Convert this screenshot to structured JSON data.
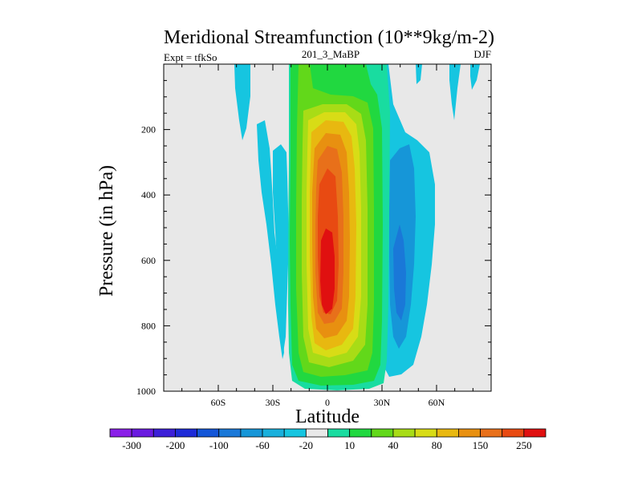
{
  "chart_data": {
    "type": "contour",
    "title": "Meridional Streamfunction (10**9kg/m-2)",
    "subtitle_left": "Expt = tfkSo",
    "subtitle_center": "201_3_MaBP",
    "subtitle_right": "DJF",
    "xlabel": "Latitude",
    "ylabel": "Pressure (in hPa)",
    "xlim": [
      -90,
      90
    ],
    "ylim": [
      0,
      1000
    ],
    "x_ticks": [
      {
        "value": -60,
        "label": "60S"
      },
      {
        "value": -30,
        "label": "30S"
      },
      {
        "value": 0,
        "label": "0"
      },
      {
        "value": 30,
        "label": "30N"
      },
      {
        "value": 60,
        "label": "60N"
      }
    ],
    "y_ticks": [
      {
        "value": 200,
        "label": "200"
      },
      {
        "value": 400,
        "label": "400"
      },
      {
        "value": 600,
        "label": "600"
      },
      {
        "value": 800,
        "label": "800"
      },
      {
        "value": 1000,
        "label": "1000"
      }
    ],
    "colorbar": {
      "colors": [
        "#8a1fe8",
        "#6a1ae0",
        "#3c1fd8",
        "#1e2bd8",
        "#1356d8",
        "#1a78d8",
        "#1696d8",
        "#19b0dc",
        "#16c5e0",
        "#e8e8e8",
        "#19dca0",
        "#21d840",
        "#62d81a",
        "#a8dc16",
        "#d8dc16",
        "#e8b810",
        "#e89010",
        "#e8701a",
        "#e84a12",
        "#e01010"
      ],
      "labels": [
        "-300",
        "-200",
        "-100",
        "-60",
        "-20",
        "10",
        "40",
        "80",
        "150",
        "250"
      ]
    },
    "features": [
      {
        "name": "Tropical cell (positive)",
        "lat_range": [
          -14,
          22
        ],
        "p_range": [
          0,
          985
        ],
        "max_value": 250,
        "max_center": [
          0,
          650
        ]
      },
      {
        "name": "NH Ferrel cell (negative)",
        "lat_range": [
          22,
          52
        ],
        "p_range": [
          150,
          950
        ],
        "min_value": -60,
        "min_center": [
          38,
          650
        ]
      },
      {
        "name": "SH negative band",
        "lat_range": [
          -38,
          -28
        ],
        "p_range": [
          260,
          960
        ],
        "min_value": -20
      },
      {
        "name": "SH upper negative",
        "lat_range": [
          -50,
          -43
        ],
        "p_range": [
          0,
          200
        ],
        "min_value": -20
      },
      {
        "name": "NH upper negative",
        "lat_range": [
          68,
          83
        ],
        "p_range": [
          0,
          150
        ],
        "min_value": -20
      }
    ]
  }
}
